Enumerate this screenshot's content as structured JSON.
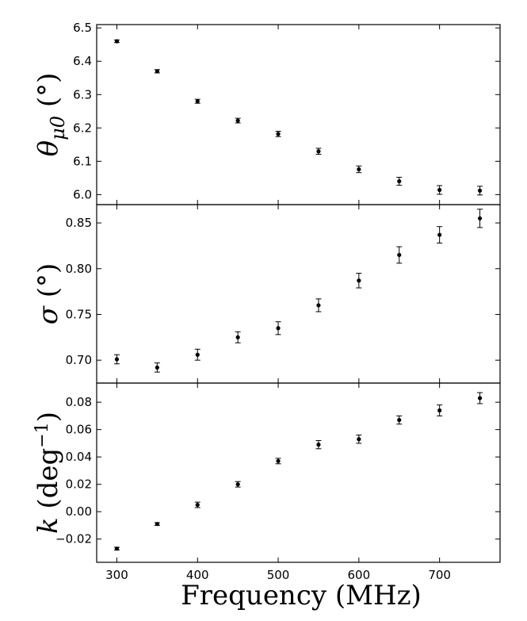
{
  "chart_data": {
    "type": "scatter",
    "xlabel": "Frequency (MHz)",
    "x_ticks": [
      300,
      400,
      500,
      600,
      700
    ],
    "xlim": [
      275,
      775
    ],
    "x": [
      300,
      350,
      400,
      450,
      500,
      550,
      600,
      650,
      700,
      750
    ],
    "panels": [
      {
        "ylabel": {
          "symbol": "θ",
          "subscript": "μ0",
          "unit": " (°)"
        },
        "ylim": [
          5.97,
          6.51
        ],
        "y_ticks": [
          "6.0",
          "6.1",
          "6.2",
          "6.3",
          "6.4",
          "6.5"
        ],
        "values": [
          6.46,
          6.37,
          6.28,
          6.222,
          6.182,
          6.13,
          6.076,
          6.04,
          6.014,
          6.012
        ],
        "errors": [
          0.004,
          0.005,
          0.006,
          0.007,
          0.008,
          0.009,
          0.01,
          0.012,
          0.013,
          0.013
        ]
      },
      {
        "ylabel": {
          "symbol": "σ",
          "subscript": "",
          "unit": " (°)"
        },
        "ylim": [
          0.675,
          0.87
        ],
        "y_ticks": [
          "0.70",
          "0.75",
          "0.80",
          "0.85"
        ],
        "values": [
          0.701,
          0.692,
          0.706,
          0.725,
          0.735,
          0.76,
          0.787,
          0.815,
          0.837,
          0.855
        ],
        "errors": [
          0.005,
          0.005,
          0.006,
          0.006,
          0.007,
          0.007,
          0.008,
          0.009,
          0.009,
          0.01
        ]
      },
      {
        "ylabel": {
          "symbol": "k",
          "subscript": "",
          "unit": " (deg",
          "sup": "−1",
          "close": ")"
        },
        "ylim": [
          -0.037,
          0.094
        ],
        "y_ticks": [
          "−0.02",
          "0.00",
          "0.02",
          "0.04",
          "0.06",
          "0.08"
        ],
        "values": [
          -0.027,
          -0.009,
          0.005,
          0.02,
          0.037,
          0.049,
          0.053,
          0.067,
          0.074,
          0.083
        ],
        "errors": [
          0.001,
          0.001,
          0.002,
          0.002,
          0.002,
          0.003,
          0.003,
          0.003,
          0.004,
          0.004
        ]
      }
    ]
  }
}
